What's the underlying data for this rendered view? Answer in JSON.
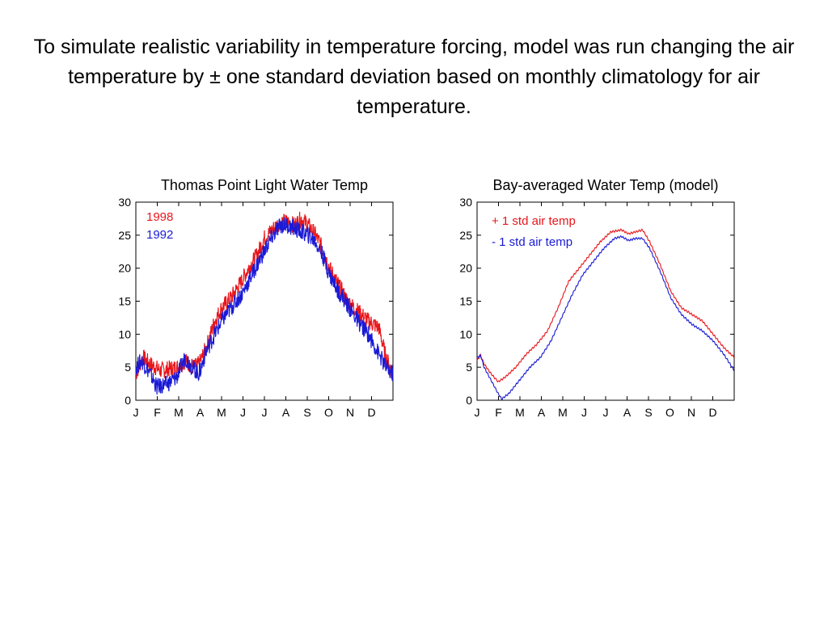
{
  "slide": {
    "title": "To simulate realistic variability in temperature forcing, model was run changing the air temperature by ± one standard deviation based on monthly climatology for air temperature."
  },
  "chart_data": [
    {
      "type": "line",
      "title": "Thomas Point Light Water Temp",
      "x_ticks": [
        "J",
        "F",
        "M",
        "A",
        "M",
        "J",
        "J",
        "A",
        "S",
        "O",
        "N",
        "D"
      ],
      "xlim": [
        0,
        365
      ],
      "ylim": [
        0,
        30
      ],
      "y_ticks": [
        0,
        5,
        10,
        15,
        20,
        25,
        30
      ],
      "legend_position": "top-left",
      "noisy": true,
      "series": [
        {
          "name": "1998",
          "color": "#e8161b",
          "x": [
            0,
            10,
            20,
            35,
            50,
            60,
            70,
            82,
            90,
            100,
            112,
            122,
            135,
            150,
            160,
            172,
            182,
            195,
            205,
            215,
            225,
            235,
            245,
            255,
            265,
            275,
            285,
            300,
            315,
            330,
            345,
            355,
            365
          ],
          "y": [
            4,
            6.5,
            5.5,
            4.5,
            4.8,
            5,
            6,
            5,
            5.5,
            8,
            12,
            14,
            15.5,
            18,
            20,
            22,
            24.5,
            26,
            27,
            27,
            26.5,
            27.5,
            26.5,
            25,
            23,
            20,
            18,
            15,
            13.5,
            12,
            11,
            6.5,
            4
          ]
        },
        {
          "name": "1992",
          "color": "#1a1ad6",
          "x": [
            0,
            8,
            18,
            30,
            45,
            58,
            70,
            80,
            90,
            100,
            112,
            122,
            135,
            150,
            160,
            172,
            182,
            195,
            205,
            215,
            225,
            235,
            245,
            255,
            265,
            275,
            285,
            300,
            315,
            330,
            345,
            355,
            365
          ],
          "y": [
            5,
            6,
            4.5,
            2,
            2.5,
            3.5,
            6.5,
            5,
            4,
            7.5,
            10,
            12,
            14,
            16,
            18,
            20.5,
            22.5,
            25,
            26.5,
            26.5,
            26,
            25.5,
            25,
            24,
            22,
            19,
            17,
            14.5,
            12,
            10,
            7,
            5,
            4
          ]
        }
      ]
    },
    {
      "type": "line",
      "title": "Bay-averaged Water Temp (model)",
      "x_ticks": [
        "J",
        "F",
        "M",
        "A",
        "M",
        "J",
        "J",
        "A",
        "S",
        "O",
        "N",
        "D"
      ],
      "xlim": [
        0,
        365
      ],
      "ylim": [
        0,
        30
      ],
      "y_ticks": [
        0,
        5,
        10,
        15,
        20,
        25,
        30
      ],
      "legend_position": "top-left",
      "noisy": false,
      "series": [
        {
          "name": "+ 1 std air temp",
          "color": "#e8161b",
          "x": [
            0,
            5,
            10,
            20,
            30,
            40,
            55,
            70,
            85,
            100,
            115,
            130,
            145,
            160,
            175,
            190,
            205,
            215,
            225,
            235,
            245,
            260,
            275,
            290,
            305,
            320,
            335,
            350,
            365
          ],
          "y": [
            6,
            6.8,
            5.5,
            4,
            2.8,
            3.5,
            5,
            7,
            8.5,
            10.5,
            14,
            18,
            20,
            22,
            24,
            25.5,
            25.8,
            25.2,
            25.5,
            25.8,
            24,
            20.5,
            16.5,
            14,
            13,
            12,
            10,
            8,
            6.5
          ]
        },
        {
          "name": "- 1 std air temp",
          "color": "#1a1ad6",
          "x": [
            0,
            5,
            10,
            20,
            30,
            35,
            45,
            60,
            75,
            90,
            105,
            120,
            135,
            150,
            165,
            180,
            195,
            205,
            215,
            225,
            235,
            245,
            260,
            275,
            290,
            305,
            320,
            335,
            350,
            365
          ],
          "y": [
            6.5,
            6.8,
            5,
            3,
            1,
            0.2,
            1,
            3,
            5,
            6.5,
            9,
            12.5,
            16,
            19,
            21,
            23,
            24.5,
            24.8,
            24.2,
            24.5,
            24.5,
            23,
            19.5,
            15.5,
            13,
            11.5,
            10.5,
            9,
            7,
            4.5
          ]
        }
      ]
    }
  ]
}
